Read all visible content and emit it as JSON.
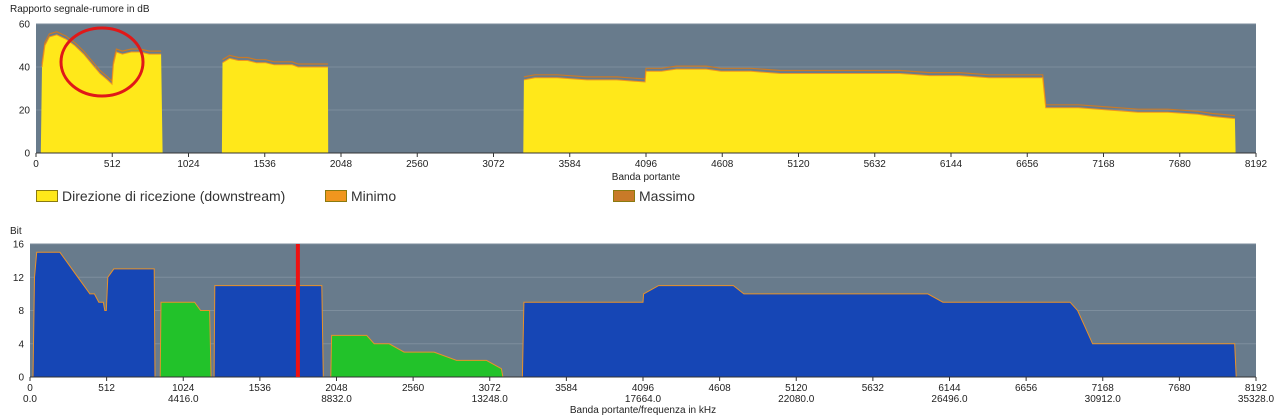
{
  "chart_data": [
    {
      "type": "area",
      "title": "Rapporto segnale-rumore in dB",
      "xlabel": "Banda portante",
      "ylabel": "",
      "xlim": [
        0,
        8192
      ],
      "ylim": [
        0,
        60
      ],
      "xticks": [
        "0",
        "512",
        "1024",
        "1536",
        "2048",
        "2560",
        "3072",
        "3584",
        "4096",
        "4608",
        "5120",
        "5632",
        "6144",
        "6656",
        "7168",
        "7680",
        "8192"
      ],
      "yticks": [
        "0",
        "20",
        "40",
        "60"
      ],
      "grid": true,
      "colors": {
        "plot_bg": "#687b8c",
        "grid": "#7d8e9d",
        "downstream": "#ffe81a",
        "minimo": "#f0961e",
        "massimo": "#c87a28"
      },
      "legend": [
        {
          "name": "Direzione di ricezione (downstream)",
          "color": "#ffe81a"
        },
        {
          "name": "Minimo",
          "color": "#f0961e"
        },
        {
          "name": "Massimo",
          "color": "#c87a28"
        }
      ],
      "series": [
        {
          "name": "Direzione di ricezione (downstream)",
          "points": [
            [
              32,
              0
            ],
            [
              40,
              40
            ],
            [
              60,
              50
            ],
            [
              90,
              54
            ],
            [
              140,
              55
            ],
            [
              200,
              53
            ],
            [
              260,
              50
            ],
            [
              320,
              46
            ],
            [
              380,
              41
            ],
            [
              430,
              37
            ],
            [
              480,
              34
            ],
            [
              510,
              32
            ],
            [
              520,
              41
            ],
            [
              540,
              47
            ],
            [
              580,
              46
            ],
            [
              640,
              47
            ],
            [
              700,
              47
            ],
            [
              760,
              46
            ],
            [
              800,
              46
            ],
            [
              840,
              46
            ],
            [
              850,
              0
            ]
          ]
        },
        {
          "name": "Direzione di ricezione (downstream)",
          "points": [
            [
              1248,
              0
            ],
            [
              1252,
              42
            ],
            [
              1300,
              44
            ],
            [
              1360,
              43
            ],
            [
              1420,
              43
            ],
            [
              1480,
              42
            ],
            [
              1540,
              42
            ],
            [
              1600,
              41
            ],
            [
              1660,
              41
            ],
            [
              1720,
              41
            ],
            [
              1760,
              40
            ],
            [
              1960,
              40
            ],
            [
              1962,
              0
            ]
          ]
        },
        {
          "name": "Direzione di ricezione (downstream)",
          "points": [
            [
              3272,
              0
            ],
            [
              3276,
              34
            ],
            [
              3350,
              35
            ],
            [
              3500,
              35
            ],
            [
              3700,
              34
            ],
            [
              3900,
              34
            ],
            [
              4090,
              33
            ],
            [
              4096,
              38
            ],
            [
              4200,
              38
            ],
            [
              4300,
              39
            ],
            [
              4400,
              39
            ],
            [
              4500,
              39
            ],
            [
              4600,
              38
            ],
            [
              4800,
              38
            ],
            [
              5000,
              37
            ],
            [
              5200,
              37
            ],
            [
              5400,
              37
            ],
            [
              5600,
              37
            ],
            [
              5800,
              37
            ],
            [
              6000,
              36
            ],
            [
              6200,
              36
            ],
            [
              6400,
              35
            ],
            [
              6600,
              35
            ],
            [
              6760,
              35
            ],
            [
              6780,
              21
            ],
            [
              7000,
              21
            ],
            [
              7200,
              20
            ],
            [
              7400,
              19
            ],
            [
              7600,
              19
            ],
            [
              7800,
              18
            ],
            [
              7900,
              17
            ],
            [
              8050,
              16
            ],
            [
              8055,
              0
            ]
          ]
        }
      ]
    },
    {
      "type": "area",
      "title": "Bit",
      "xlabel": "Banda portante/frequenza in kHz",
      "ylabel": "",
      "xlim": [
        0,
        8192
      ],
      "ylim": [
        0,
        16
      ],
      "xticks": [
        "0",
        "512",
        "1024",
        "1536",
        "2048",
        "2560",
        "3072",
        "3584",
        "4096",
        "4608",
        "5120",
        "5632",
        "6144",
        "6656",
        "7168",
        "7680",
        "8192"
      ],
      "xticks_freq": [
        "0.0",
        "",
        "4416.0",
        "",
        "8832.0",
        "",
        "13248.0",
        "",
        "17664.0",
        "",
        "22080.0",
        "",
        "26496.0",
        "",
        "30912.0",
        "",
        "35328.0"
      ],
      "yticks": [
        "0",
        "4",
        "8",
        "12",
        "16"
      ],
      "grid": true,
      "colors": {
        "plot_bg": "#687b8c",
        "grid": "#7d8e9d",
        "downstream": "#1646b5",
        "upstream": "#22c22a",
        "outline": "#e8922a",
        "marker": "#ee1111"
      },
      "marker_x": 1790,
      "series": [
        {
          "name": "",
          "points": [
            [
              20,
              0
            ],
            [
              30,
              12
            ],
            [
              45,
              15
            ],
            [
              60,
              15
            ],
            [
              80,
              15
            ],
            [
              120,
              15
            ],
            [
              150,
              15
            ],
            [
              200,
              15
            ],
            [
              240,
              14
            ],
            [
              280,
              13
            ],
            [
              320,
              12
            ],
            [
              360,
              11
            ],
            [
              400,
              10
            ],
            [
              430,
              10
            ],
            [
              460,
              9
            ],
            [
              480,
              9
            ],
            [
              490,
              9
            ],
            [
              500,
              8
            ],
            [
              510,
              8
            ],
            [
              520,
              12
            ],
            [
              560,
              13
            ],
            [
              600,
              13
            ],
            [
              660,
              13
            ],
            [
              720,
              13
            ],
            [
              780,
              13
            ],
            [
              800,
              13
            ],
            [
              820,
              13
            ],
            [
              830,
              13
            ],
            [
              835,
              0
            ]
          ]
        },
        {
          "name": "",
          "points": [
            [
              1230,
              0
            ],
            [
              1235,
              11
            ],
            [
              1300,
              11
            ],
            [
              1400,
              11
            ],
            [
              1500,
              11
            ],
            [
              1600,
              11
            ],
            [
              1700,
              11
            ],
            [
              1760,
              11
            ],
            [
              1820,
              11
            ],
            [
              1900,
              11
            ],
            [
              1950,
              11
            ],
            [
              1960,
              0
            ]
          ]
        },
        {
          "name": "",
          "points": [
            [
              3290,
              0
            ],
            [
              3300,
              9
            ],
            [
              3400,
              9
            ],
            [
              3600,
              9
            ],
            [
              3800,
              9
            ],
            [
              4000,
              9
            ],
            [
              4096,
              9
            ],
            [
              4100,
              10
            ],
            [
              4200,
              11
            ],
            [
              4300,
              11
            ],
            [
              4500,
              11
            ],
            [
              4700,
              11
            ],
            [
              4770,
              10
            ],
            [
              5000,
              10
            ],
            [
              5500,
              10
            ],
            [
              6000,
              10
            ],
            [
              6100,
              9
            ],
            [
              6500,
              9
            ],
            [
              6950,
              9
            ],
            [
              7000,
              8
            ],
            [
              7050,
              6
            ],
            [
              7100,
              4
            ],
            [
              7150,
              4
            ],
            [
              7300,
              4
            ],
            [
              7500,
              4
            ],
            [
              7700,
              4
            ],
            [
              7900,
              4
            ],
            [
              8050,
              4
            ],
            [
              8060,
              0
            ]
          ]
        }
      ],
      "series_upstream": [
        {
          "name": "",
          "points": [
            [
              870,
              0
            ],
            [
              875,
              9
            ],
            [
              960,
              9
            ],
            [
              1100,
              9
            ],
            [
              1140,
              8
            ],
            [
              1200,
              8
            ],
            [
              1210,
              0
            ]
          ]
        },
        {
          "name": "",
          "points": [
            [
              2010,
              0
            ],
            [
              2015,
              5
            ],
            [
              2100,
              5
            ],
            [
              2250,
              5
            ],
            [
              2300,
              4
            ],
            [
              2400,
              4
            ],
            [
              2500,
              3
            ],
            [
              2700,
              3
            ],
            [
              2850,
              2
            ],
            [
              3050,
              2
            ],
            [
              3150,
              1
            ],
            [
              3160,
              0
            ]
          ]
        }
      ]
    }
  ]
}
